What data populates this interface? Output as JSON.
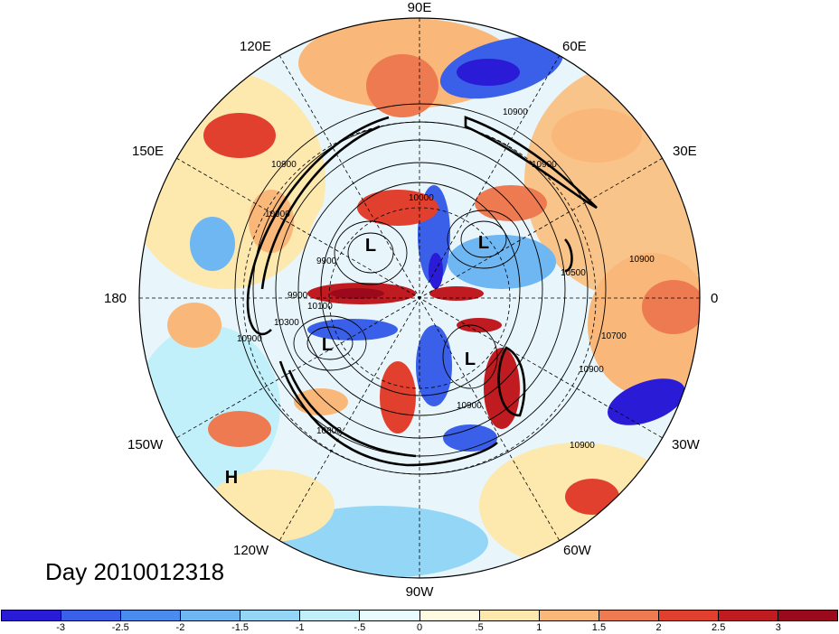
{
  "title": "Day 2010012318",
  "longitude_labels": {
    "top": "90E",
    "right": "0",
    "bottom": "90W",
    "left": "180",
    "upper_left": "120E",
    "upper_right": "60E",
    "upper_left2": "150E",
    "upper_right2": "30E",
    "lower_left2": "150W",
    "lower_right2": "30W",
    "lower_left": "120W",
    "lower_right": "60W"
  },
  "pressure_centers": [
    {
      "label": "L",
      "name": "low-center-1"
    },
    {
      "label": "L",
      "name": "low-center-2"
    },
    {
      "label": "L",
      "name": "low-center-3"
    },
    {
      "label": "L",
      "name": "low-center-4"
    },
    {
      "label": "H",
      "name": "high-center-1"
    }
  ],
  "contour_labels": [
    "10900",
    "10900",
    "10900",
    "10900",
    "10900",
    "10900",
    "10700",
    "10500",
    "10300",
    "10100",
    "10000",
    "9900",
    "9900",
    "10900",
    "10900",
    "10800",
    "10900"
  ],
  "colorbar": {
    "colors": [
      "#2a1bd6",
      "#3a5fe8",
      "#4a8cee",
      "#6eb7f2",
      "#93d6f6",
      "#c2f0fa",
      "#e8fbfd",
      "#fffbe0",
      "#fde8ad",
      "#f9b879",
      "#ee7a52",
      "#e2402f",
      "#c01b20",
      "#9b0a1c"
    ],
    "ticks": [
      "-3",
      "-2.5",
      "-2",
      "-1.5",
      "-1",
      "-.5",
      "0",
      ".5",
      "1",
      "1.5",
      "2",
      "2.5",
      "3"
    ]
  }
}
